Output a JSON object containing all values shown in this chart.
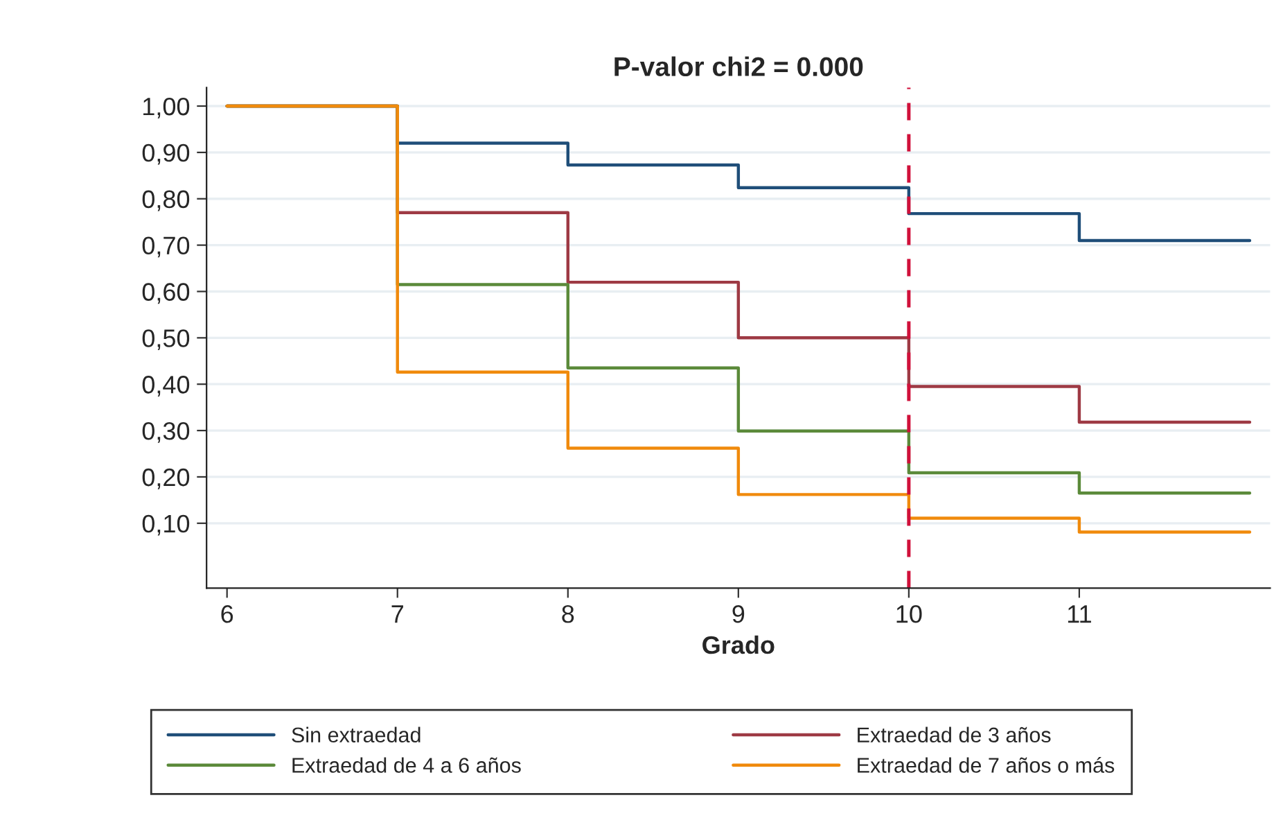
{
  "chart_data": {
    "type": "step",
    "title": "P-valor chi2 = 0.000",
    "xlabel": "Grado",
    "x": [
      6,
      7,
      8,
      9,
      10,
      11,
      12
    ],
    "series": [
      {
        "name": "Sin extraedad",
        "color": "#1f4e79",
        "values": [
          1.0,
          0.92,
          0.873,
          0.824,
          0.768,
          0.71,
          0.71
        ]
      },
      {
        "name": "Extraedad de 3 años",
        "color": "#9e3a44",
        "values": [
          1.0,
          0.77,
          0.62,
          0.5,
          0.395,
          0.318,
          0.318
        ]
      },
      {
        "name": "Extraedad de 4 a 6 años",
        "color": "#5b8a3a",
        "values": [
          1.0,
          0.615,
          0.435,
          0.299,
          0.209,
          0.165,
          0.165
        ]
      },
      {
        "name": "Extraedad de 7 años o más",
        "color": "#f08a0c",
        "values": [
          1.0,
          0.426,
          0.262,
          0.162,
          0.111,
          0.081,
          0.081
        ]
      }
    ],
    "xlim": [
      5.88,
      12.12
    ],
    "xticks": [
      6,
      7,
      8,
      9,
      10,
      11
    ],
    "ylim": [
      -0.04,
      1.04
    ],
    "yticks": [
      {
        "value": 0.1,
        "label": "0,10"
      },
      {
        "value": 0.2,
        "label": "0,20"
      },
      {
        "value": 0.3,
        "label": "0,30"
      },
      {
        "value": 0.4,
        "label": "0,40"
      },
      {
        "value": 0.5,
        "label": "0,50"
      },
      {
        "value": 0.6,
        "label": "0,60"
      },
      {
        "value": 0.7,
        "label": "0,70"
      },
      {
        "value": 0.8,
        "label": "0,80"
      },
      {
        "value": 0.9,
        "label": "0,90"
      },
      {
        "value": 1.0,
        "label": "1,00"
      }
    ],
    "ref_lines": [
      {
        "axis": "x",
        "value": 10,
        "color": "#d0103a",
        "line_style": "dashed"
      }
    ],
    "grid": "y",
    "legend": "bottom",
    "line_style": "solid"
  }
}
